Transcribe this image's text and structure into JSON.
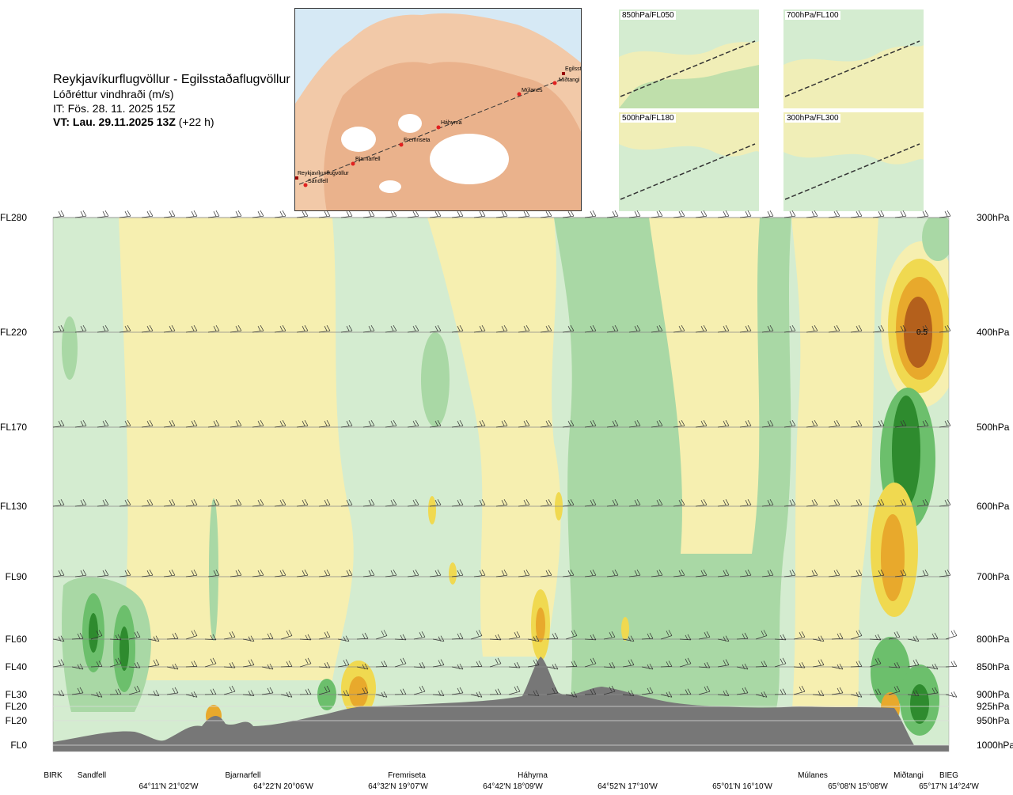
{
  "header": {
    "title": "Reykjavíkurflugvöllur - Egilsstaðaflugvöllur",
    "subtitle": "Lóðréttur vindhraði (m/s)",
    "issue_time": "IT: Fös. 28. 11. 2025 15Z",
    "valid_time_label": "VT: Lau. 29.11.2025 13Z",
    "valid_time_offset": "(+22 h)"
  },
  "map": {
    "sites": [
      "Reykjavíkurflugvöllur",
      "Sandfell",
      "Bjarnarfell",
      "Fremriseta",
      "Háhyrna",
      "Múlanes",
      "Miðtangi",
      "Egilsst"
    ]
  },
  "level_maps": [
    {
      "label": "850hPa/FL050"
    },
    {
      "label": "700hPa/FL100"
    },
    {
      "label": "500hPa/FL180"
    },
    {
      "label": "300hPa/FL300"
    }
  ],
  "chart_data": {
    "type": "heatmap",
    "title": "Reykjavíkurflugvöllur - Egilsstaðaflugvöllur",
    "colorbar_label": "Lóðréttur vindhraði (m/s)",
    "flight_levels": [
      {
        "label": "FL280",
        "hpa": "300hPa"
      },
      {
        "label": "FL220",
        "hpa": "400hPa"
      },
      {
        "label": "FL170",
        "hpa": "500hPa"
      },
      {
        "label": "FL130",
        "hpa": "600hPa"
      },
      {
        "label": "FL90",
        "hpa": "700hPa"
      },
      {
        "label": "FL60",
        "hpa": "800hPa"
      },
      {
        "label": "FL40",
        "hpa": "850hPa"
      },
      {
        "label": "FL30",
        "hpa": "900hPa"
      },
      {
        "label": "FL20",
        "hpa": "925hPa"
      },
      {
        "label": "FL20",
        "hpa": "950hPa"
      },
      {
        "label": "FL0",
        "hpa": "1000hPa"
      }
    ],
    "sites": [
      "BIRK",
      "Sandfell",
      "Bjarnarfell",
      "Fremriseta",
      "Háhyrna",
      "Múlanes",
      "Miðtangi",
      "BIEG"
    ],
    "coordinates": [
      "64°11'N 21°02'W",
      "64°22'N 20°06'W",
      "64°32'N 19°07'W",
      "64°42'N 18°09'W",
      "64°52'N 17°10'W",
      "65°01'N 16°10'W",
      "65°08'N 15°08'W",
      "65°17'N 14°24'W"
    ],
    "annotation": "0.5",
    "colors": {
      "strong_down": "#2e8b2e",
      "moderate_down": "#6cbf6c",
      "weak_down": "#a9d8a5",
      "very_weak_down": "#d4ecd0",
      "neutral": "#fdfbe6",
      "very_weak_up": "#f6efb0",
      "weak_up": "#f0d950",
      "moderate_up": "#e8a92c",
      "strong_up": "#b4601c",
      "terrain": "#777777"
    }
  }
}
